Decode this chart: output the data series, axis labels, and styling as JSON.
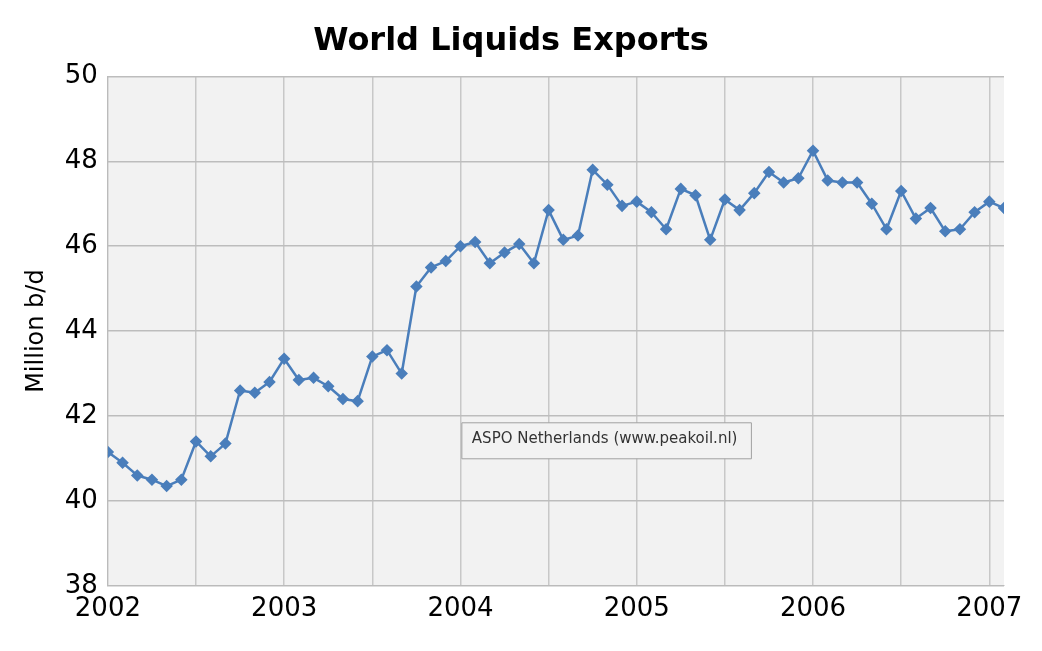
{
  "chart_data": {
    "type": "line",
    "title": "World Liquids Exports",
    "ylabel": "Million b/d",
    "x": [
      "2002-01",
      "2002-02",
      "2002-03",
      "2002-04",
      "2002-05",
      "2002-06",
      "2002-07",
      "2002-08",
      "2002-09",
      "2002-10",
      "2002-11",
      "2002-12",
      "2003-01",
      "2003-02",
      "2003-03",
      "2003-04",
      "2003-05",
      "2003-06",
      "2003-07",
      "2003-08",
      "2003-09",
      "2003-10",
      "2003-11",
      "2003-12",
      "2004-01",
      "2004-02",
      "2004-03",
      "2004-04",
      "2004-05",
      "2004-06",
      "2004-07",
      "2004-08",
      "2004-09",
      "2004-10",
      "2004-11",
      "2004-12",
      "2005-01",
      "2005-02",
      "2005-03",
      "2005-04",
      "2005-05",
      "2005-06",
      "2005-07",
      "2005-08",
      "2005-09",
      "2005-10",
      "2005-11",
      "2005-12",
      "2006-01",
      "2006-02",
      "2006-03",
      "2006-04",
      "2006-05",
      "2006-06",
      "2006-07",
      "2006-08",
      "2006-09",
      "2006-10",
      "2006-11",
      "2006-12",
      "2007-01",
      "2007-02"
    ],
    "series": [
      {
        "color": "#4a7ebb",
        "values": [
          41.15,
          40.9,
          40.6,
          40.5,
          40.35,
          40.5,
          41.4,
          41.05,
          41.35,
          42.6,
          42.55,
          42.8,
          43.35,
          42.85,
          42.9,
          42.7,
          42.4,
          42.35,
          43.4,
          43.55,
          43.0,
          45.05,
          45.5,
          45.65,
          46.0,
          46.1,
          45.6,
          45.85,
          46.05,
          45.6,
          46.85,
          46.15,
          46.25,
          47.8,
          47.45,
          46.95,
          47.05,
          46.8,
          46.4,
          47.35,
          47.2,
          46.15,
          47.1,
          46.85,
          47.25,
          47.75,
          47.5,
          47.6,
          48.25,
          47.55,
          47.5,
          47.5,
          47.0,
          46.4,
          47.3,
          46.65,
          46.9,
          46.35,
          46.4,
          46.8,
          47.05,
          46.9
        ]
      }
    ],
    "xlim": [
      "2002-01",
      "2007-02"
    ],
    "xticks": [
      {
        "value": "2002",
        "label": "2002"
      },
      {
        "value": "2002-07",
        "label": null
      },
      {
        "value": "2003",
        "label": "2003"
      },
      {
        "value": "2003-07",
        "label": null
      },
      {
        "value": "2004",
        "label": "2004"
      },
      {
        "value": "2004-07",
        "label": null
      },
      {
        "value": "2005",
        "label": "2005"
      },
      {
        "value": "2005-07",
        "label": null
      },
      {
        "value": "2006",
        "label": "2006"
      },
      {
        "value": "2006-07",
        "label": null
      },
      {
        "value": "2007",
        "label": "2007"
      }
    ],
    "ylim": [
      38,
      50
    ],
    "yticks": [
      38,
      40,
      42,
      44,
      46,
      48,
      50
    ],
    "grid": true,
    "legend": false,
    "marker": "diamond",
    "line_style": "solid",
    "annotations": [
      "ASPO Netherlands (www.peakoil.nl)"
    ]
  }
}
